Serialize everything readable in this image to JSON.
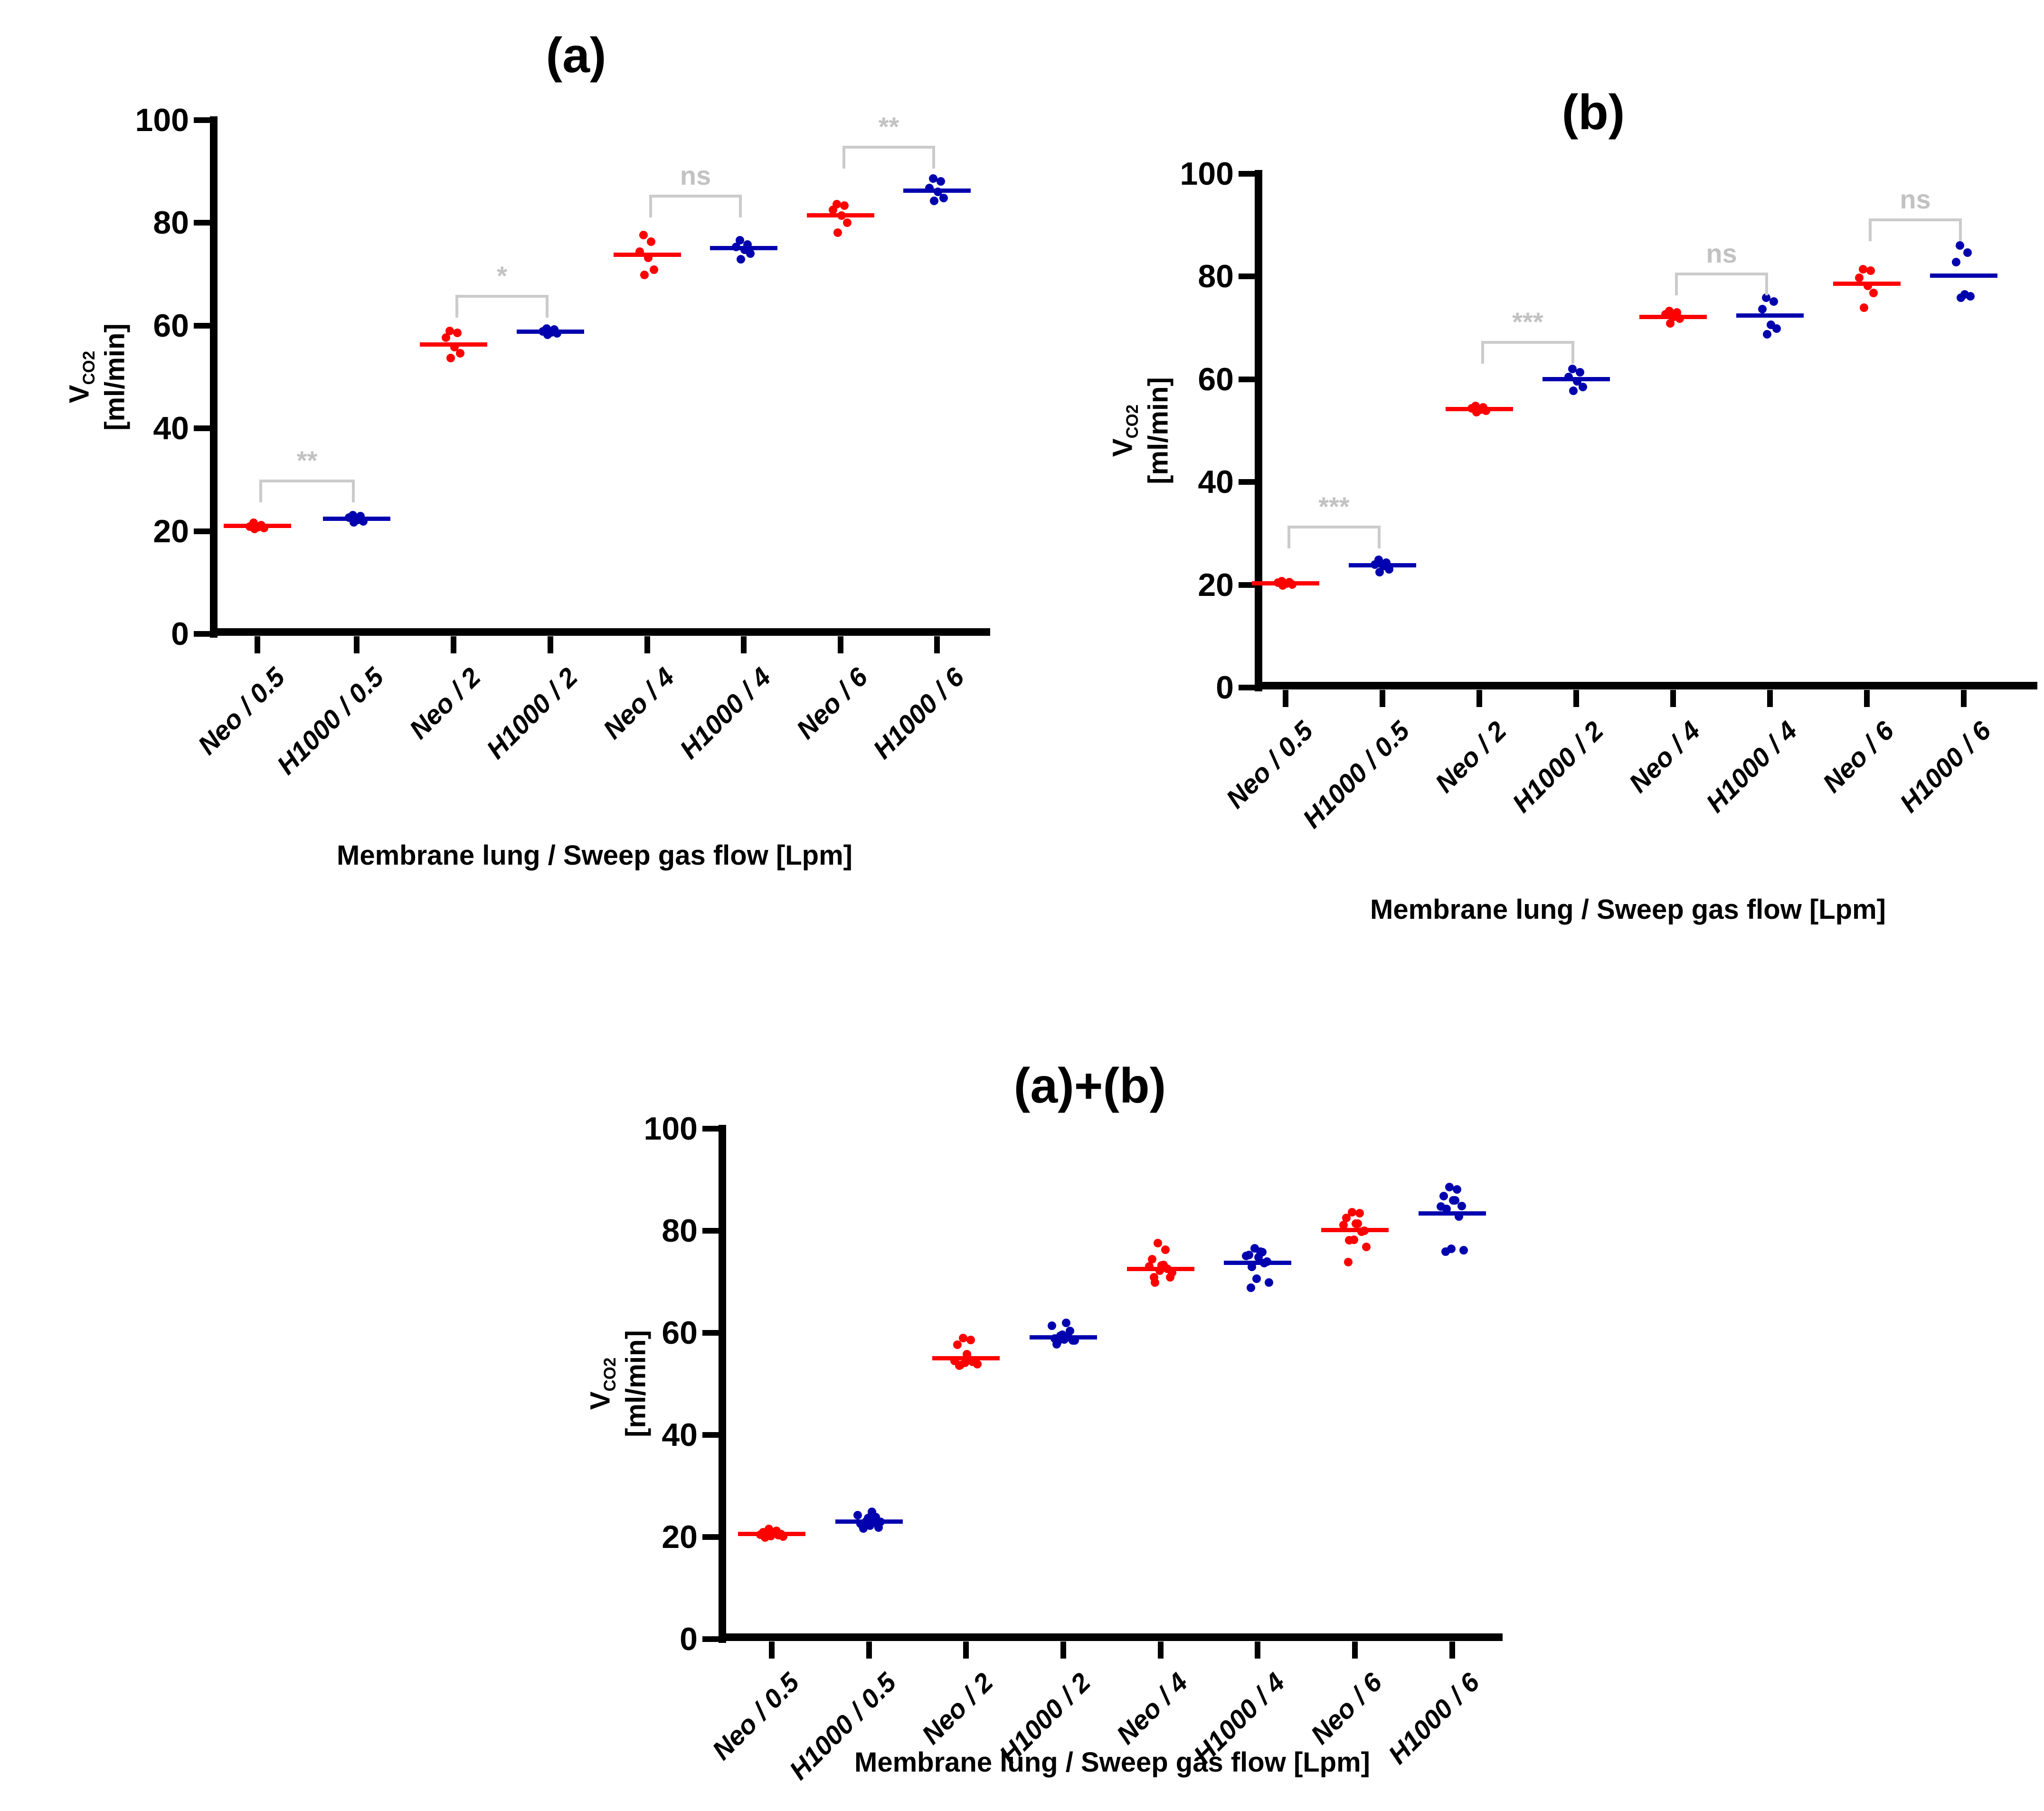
{
  "axis": {
    "x_title": "Membrane lung / Sweep gas flow [Lpm]",
    "y_title_main": "V",
    "y_title_sub": "CO2",
    "y_title_unit": "[ml/min]"
  },
  "colors": {
    "neo": "#FF0000",
    "h1000": "#0000AE",
    "significance": "#CBCBCB",
    "axis": "#000000"
  },
  "chart_data": [
    {
      "id": "a",
      "type": "scatter",
      "title": "(a)",
      "xlabel": "Membrane lung / Sweep gas flow [Lpm]",
      "ylabel": "VCO2 [ml/min]",
      "ylim": [
        0,
        100
      ],
      "yticks": [
        0,
        20,
        40,
        60,
        80,
        100
      ],
      "categories": [
        "Neo / 0.5",
        "H1000 / 0.5",
        "Neo / 2",
        "H1000 / 2",
        "Neo / 4",
        "H1000 / 4",
        "Neo / 6",
        "H1000 / 6"
      ],
      "groups": [
        {
          "category": "Neo / 0.5",
          "series": "Neo",
          "color": "#FF0000",
          "median": 21.0,
          "points": [
            21.6,
            21.2,
            20.9,
            20.8,
            20.6,
            20.4
          ]
        },
        {
          "category": "H1000 / 0.5",
          "series": "H1000",
          "color": "#0000AE",
          "median": 22.4,
          "points": [
            23.1,
            22.9,
            22.6,
            22.2,
            21.9,
            21.7
          ]
        },
        {
          "category": "Neo / 2",
          "series": "Neo",
          "color": "#FF0000",
          "median": 56.3,
          "points": [
            59.0,
            58.6,
            57.7,
            55.8,
            54.6,
            53.7
          ]
        },
        {
          "category": "H1000 / 2",
          "series": "H1000",
          "color": "#0000AE",
          "median": 58.8,
          "points": [
            59.4,
            59.2,
            58.9,
            58.7,
            58.5,
            58.2
          ]
        },
        {
          "category": "Neo / 4",
          "series": "Neo",
          "color": "#FF0000",
          "median": 73.8,
          "points": [
            77.6,
            76.3,
            74.4,
            73.2,
            70.9,
            69.9
          ]
        },
        {
          "category": "H1000 / 4",
          "series": "H1000",
          "color": "#0000AE",
          "median": 75.1,
          "points": [
            76.6,
            75.8,
            75.3,
            74.8,
            74.0,
            72.9
          ]
        },
        {
          "category": "Neo / 6",
          "series": "Neo",
          "color": "#FF0000",
          "median": 81.5,
          "points": [
            83.6,
            83.4,
            82.5,
            81.4,
            80.0,
            78.1
          ]
        },
        {
          "category": "H1000 / 6",
          "series": "H1000",
          "color": "#0000AE",
          "median": 86.3,
          "points": [
            88.6,
            88.1,
            86.8,
            86.0,
            84.8,
            84.3
          ]
        }
      ],
      "significance": [
        {
          "between": [
            0,
            1
          ],
          "label": "**",
          "y": 30.0
        },
        {
          "between": [
            2,
            3
          ],
          "label": "*",
          "y": 66.0
        },
        {
          "between": [
            4,
            5
          ],
          "label": "ns",
          "y": 85.5
        },
        {
          "between": [
            6,
            7
          ],
          "label": "**",
          "y": 95.0
        }
      ]
    },
    {
      "id": "b",
      "type": "scatter",
      "title": "(b)",
      "xlabel": "Membrane lung / Sweep gas flow [Lpm]",
      "ylabel": "VCO2 [ml/min]",
      "ylim": [
        0,
        100
      ],
      "yticks": [
        0,
        20,
        40,
        60,
        80,
        100
      ],
      "categories": [
        "Neo / 0.5",
        "H1000 / 0.5",
        "Neo / 2",
        "H1000 / 2",
        "Neo / 4",
        "H1000 / 4",
        "Neo / 6",
        "H1000 / 6"
      ],
      "groups": [
        {
          "category": "Neo / 0.5",
          "series": "Neo",
          "color": "#FF0000",
          "median": 20.3,
          "points": [
            20.7,
            20.5,
            20.4,
            20.2,
            20.1,
            19.9
          ]
        },
        {
          "category": "H1000 / 0.5",
          "series": "H1000",
          "color": "#0000AE",
          "median": 23.8,
          "points": [
            24.9,
            24.3,
            23.9,
            23.7,
            23.0,
            22.5
          ]
        },
        {
          "category": "Neo / 2",
          "series": "Neo",
          "color": "#FF0000",
          "median": 54.2,
          "points": [
            54.8,
            54.5,
            54.3,
            54.1,
            53.9,
            53.6
          ]
        },
        {
          "category": "H1000 / 2",
          "series": "H1000",
          "color": "#0000AE",
          "median": 60.0,
          "points": [
            62.0,
            61.4,
            60.4,
            59.6,
            58.5,
            57.8
          ]
        },
        {
          "category": "Neo / 4",
          "series": "Neo",
          "color": "#FF0000",
          "median": 72.1,
          "points": [
            73.3,
            73.0,
            72.6,
            72.2,
            71.8,
            70.9
          ]
        },
        {
          "category": "H1000 / 4",
          "series": "H1000",
          "color": "#0000AE",
          "median": 72.4,
          "points": [
            75.9,
            75.1,
            73.7,
            70.6,
            69.9,
            68.8
          ]
        },
        {
          "category": "Neo / 6",
          "series": "Neo",
          "color": "#FF0000",
          "median": 78.6,
          "points": [
            81.4,
            81.1,
            79.8,
            78.2,
            76.8,
            73.9
          ]
        },
        {
          "category": "H1000 / 6",
          "series": "H1000",
          "color": "#0000AE",
          "median": 80.2,
          "points": [
            86.0,
            84.7,
            82.8,
            76.5,
            76.2,
            75.9
          ]
        }
      ],
      "significance": [
        {
          "between": [
            0,
            1
          ],
          "label": "***",
          "y": 31.5
        },
        {
          "between": [
            2,
            3
          ],
          "label": "***",
          "y": 67.5
        },
        {
          "between": [
            4,
            5
          ],
          "label": "ns",
          "y": 80.8
        },
        {
          "between": [
            6,
            7
          ],
          "label": "ns",
          "y": 91.3
        }
      ]
    },
    {
      "id": "c",
      "type": "scatter",
      "title": "(a)+(b)",
      "xlabel": "Membrane lung / Sweep gas flow [Lpm]",
      "ylabel": "VCO2 [ml/min]",
      "ylim": [
        0,
        100
      ],
      "yticks": [
        0,
        20,
        40,
        60,
        80,
        100
      ],
      "categories": [
        "Neo / 0.5",
        "H1000 / 0.5",
        "Neo / 2",
        "H1000 / 2",
        "Neo / 4",
        "H1000 / 4",
        "Neo / 6",
        "H1000 / 6"
      ],
      "groups": [
        {
          "category": "Neo / 0.5",
          "series": "Neo",
          "color": "#FF0000",
          "median": 20.6,
          "points": [
            21.6,
            21.2,
            20.9,
            20.8,
            20.6,
            20.4,
            20.7,
            20.5,
            20.4,
            20.2,
            20.1,
            19.9
          ]
        },
        {
          "category": "H1000 / 0.5",
          "series": "H1000",
          "color": "#0000AE",
          "median": 23.0,
          "points": [
            23.1,
            22.9,
            22.6,
            22.2,
            21.9,
            21.7,
            24.9,
            24.3,
            23.9,
            23.7,
            23.0,
            22.5
          ]
        },
        {
          "category": "Neo / 2",
          "series": "Neo",
          "color": "#FF0000",
          "median": 55.0,
          "points": [
            59.0,
            58.6,
            57.7,
            55.8,
            54.6,
            53.7,
            54.8,
            54.5,
            54.3,
            54.1,
            53.9,
            53.6
          ]
        },
        {
          "category": "H1000 / 2",
          "series": "H1000",
          "color": "#0000AE",
          "median": 59.1,
          "points": [
            59.4,
            59.2,
            58.9,
            58.7,
            58.5,
            58.2,
            62.0,
            61.4,
            60.4,
            59.6,
            58.5,
            57.8
          ]
        },
        {
          "category": "Neo / 4",
          "series": "Neo",
          "color": "#FF0000",
          "median": 72.5,
          "points": [
            77.6,
            76.3,
            74.4,
            73.2,
            70.9,
            69.9,
            73.3,
            73.0,
            72.6,
            72.2,
            71.8,
            70.9
          ]
        },
        {
          "category": "H1000 / 4",
          "series": "H1000",
          "color": "#0000AE",
          "median": 73.7,
          "points": [
            76.6,
            75.8,
            75.3,
            74.8,
            74.0,
            72.9,
            75.9,
            75.1,
            73.7,
            70.6,
            69.9,
            68.8
          ]
        },
        {
          "category": "Neo / 6",
          "series": "Neo",
          "color": "#FF0000",
          "median": 80.1,
          "points": [
            83.6,
            83.4,
            82.5,
            81.4,
            80.0,
            78.1,
            81.4,
            81.1,
            79.8,
            78.2,
            76.8,
            73.9
          ]
        },
        {
          "category": "H1000 / 6",
          "series": "H1000",
          "color": "#0000AE",
          "median": 83.4,
          "points": [
            88.6,
            88.1,
            86.8,
            86.0,
            84.8,
            84.3,
            86.0,
            84.7,
            82.8,
            76.5,
            76.2,
            75.9
          ]
        }
      ],
      "significance": []
    }
  ]
}
